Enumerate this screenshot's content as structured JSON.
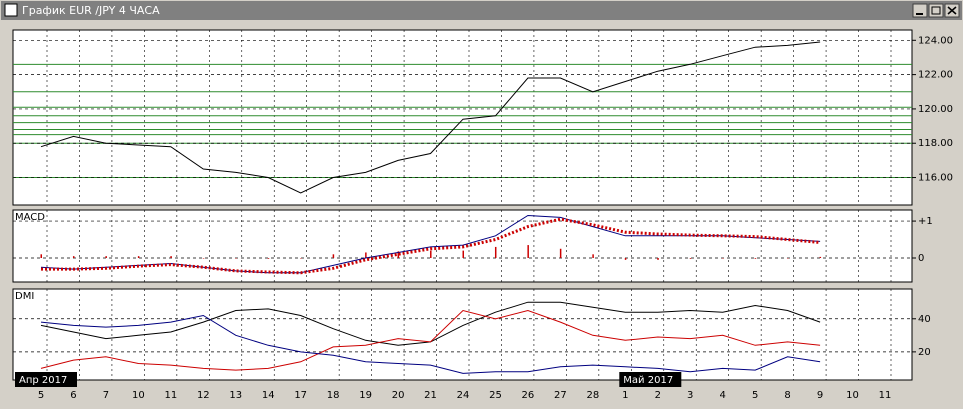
{
  "window": {
    "title": "График EUR /JPY  4 ЧАСА"
  },
  "chart_data": [
    {
      "type": "line",
      "ylim": [
        114.4,
        124.6
      ],
      "yticks": [
        {
          "value": 116,
          "label": "116.00"
        },
        {
          "value": 118,
          "label": "118.00"
        },
        {
          "value": 120,
          "label": "120.00"
        },
        {
          "value": 122,
          "label": "122.00"
        },
        {
          "value": 124,
          "label": "124.00"
        }
      ],
      "levels": [
        122.6,
        121.0,
        120.1,
        119.6,
        119.2,
        118.8,
        118.5,
        118.0,
        116.0
      ],
      "level_color": "#2e8b2e",
      "grid": true,
      "series": [
        {
          "color": "#000000",
          "style": "line",
          "values": [
            117.8,
            118.4,
            118.0,
            117.9,
            117.8,
            116.5,
            116.3,
            116.0,
            115.1,
            116.0,
            116.3,
            117.0,
            117.4,
            119.4,
            119.6,
            121.8,
            121.8,
            121.0,
            121.6,
            122.2,
            122.6,
            123.1,
            123.6,
            123.7,
            123.9,
            null,
            null
          ]
        }
      ]
    },
    {
      "type": "line",
      "title": "MACD",
      "ylim": [
        -0.65,
        1.3
      ],
      "yticks": [
        {
          "value": 0,
          "label": "0"
        },
        {
          "value": 1,
          "label": "+1"
        }
      ],
      "grid": true,
      "series": [
        {
          "color": "#cc0000",
          "style": "bar",
          "values": [
            0.1,
            0.05,
            0.05,
            0.05,
            0.05,
            0,
            0,
            -0.02,
            0,
            0.1,
            0.15,
            0.18,
            0.2,
            0.2,
            0.3,
            0.35,
            0.25,
            0.1,
            -0.05,
            -0.05,
            -0.02,
            0,
            -0.02,
            0,
            0.03,
            null,
            null
          ]
        },
        {
          "color": "#000080",
          "style": "line",
          "values": [
            -0.25,
            -0.3,
            -0.25,
            -0.2,
            -0.15,
            -0.25,
            -0.35,
            -0.4,
            -0.4,
            -0.2,
            0.0,
            0.15,
            0.3,
            0.35,
            0.6,
            1.15,
            1.1,
            0.85,
            0.6,
            0.6,
            0.6,
            0.6,
            0.55,
            0.5,
            0.45,
            null,
            null
          ]
        },
        {
          "color": "#cc0000",
          "style": "dotted",
          "values": [
            -0.3,
            -0.3,
            -0.28,
            -0.22,
            -0.18,
            -0.25,
            -0.35,
            -0.38,
            -0.4,
            -0.28,
            -0.05,
            0.1,
            0.25,
            0.3,
            0.5,
            0.85,
            1.05,
            0.9,
            0.7,
            0.65,
            0.62,
            0.6,
            0.58,
            0.5,
            0.42,
            null,
            null
          ]
        }
      ]
    },
    {
      "type": "line",
      "title": "DMI",
      "ylim": [
        3,
        58
      ],
      "yticks": [
        20,
        40
      ],
      "grid": true,
      "categories": [
        "5",
        "6",
        "7",
        "10",
        "11",
        "12",
        "13",
        "14",
        "17",
        "18",
        "19",
        "20",
        "21",
        "24",
        "25",
        "26",
        "27",
        "28",
        "1",
        "2",
        "3",
        "4",
        "5",
        "8",
        "9",
        "10",
        "11"
      ],
      "x_groups": [
        "Апр 2017",
        "Май 2017"
      ],
      "series": [
        {
          "color": "#000000",
          "style": "line",
          "values": [
            36,
            32,
            28,
            30,
            32,
            38,
            45,
            46,
            42,
            34,
            27,
            24,
            26,
            36,
            44,
            50,
            50,
            47,
            44,
            44,
            45,
            44,
            48,
            45,
            38,
            null,
            null
          ]
        },
        {
          "color": "#cc0000",
          "style": "line",
          "values": [
            10,
            15,
            17,
            13,
            12,
            10,
            9,
            10,
            14,
            23,
            24,
            28,
            26,
            45,
            40,
            45,
            38,
            30,
            27,
            29,
            28,
            30,
            24,
            26,
            24,
            null,
            null
          ]
        },
        {
          "color": "#000080",
          "style": "line",
          "values": [
            38,
            36,
            35,
            36,
            38,
            42,
            30,
            24,
            20,
            18,
            14,
            13,
            12,
            7,
            8,
            8,
            11,
            12,
            11,
            10,
            8,
            10,
            9,
            17,
            14,
            null,
            null
          ]
        }
      ]
    }
  ]
}
